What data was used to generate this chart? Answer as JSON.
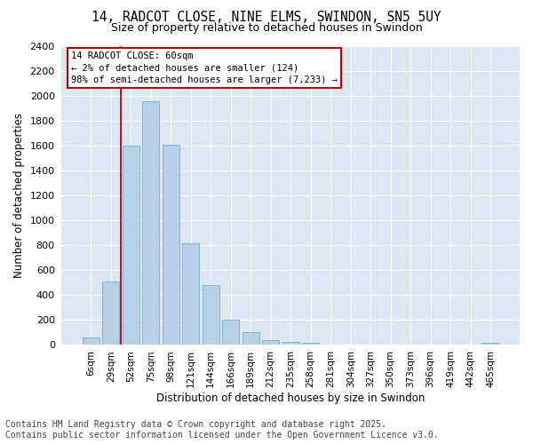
{
  "title": "14, RADCOT CLOSE, NINE ELMS, SWINDON, SN5 5UY",
  "subtitle": "Size of property relative to detached houses in Swindon",
  "xlabel": "Distribution of detached houses by size in Swindon",
  "ylabel": "Number of detached properties",
  "categories": [
    "6sqm",
    "29sqm",
    "52sqm",
    "75sqm",
    "98sqm",
    "121sqm",
    "144sqm",
    "166sqm",
    "189sqm",
    "212sqm",
    "235sqm",
    "258sqm",
    "281sqm",
    "304sqm",
    "327sqm",
    "350sqm",
    "373sqm",
    "396sqm",
    "419sqm",
    "442sqm",
    "465sqm"
  ],
  "values": [
    55,
    505,
    1595,
    1955,
    1605,
    810,
    480,
    200,
    97,
    37,
    20,
    15,
    0,
    0,
    0,
    0,
    0,
    0,
    0,
    0,
    15
  ],
  "bar_color": "#b8d0e8",
  "bar_edgecolor": "#7aadd4",
  "vline_x": 1.5,
  "vline_color": "#bb0000",
  "annotation_text": "14 RADCOT CLOSE: 60sqm\n← 2% of detached houses are smaller (124)\n98% of semi-detached houses are larger (7,233) →",
  "annotation_box_facecolor": "#ffffff",
  "annotation_box_edgecolor": "#bb0000",
  "ylim": [
    0,
    2400
  ],
  "yticks": [
    0,
    200,
    400,
    600,
    800,
    1000,
    1200,
    1400,
    1600,
    1800,
    2000,
    2200,
    2400
  ],
  "plot_bg": "#dce7f3",
  "grid_color": "#c8d8e8",
  "footer_line1": "Contains HM Land Registry data © Crown copyright and database right 2025.",
  "footer_line2": "Contains public sector information licensed under the Open Government Licence v3.0."
}
